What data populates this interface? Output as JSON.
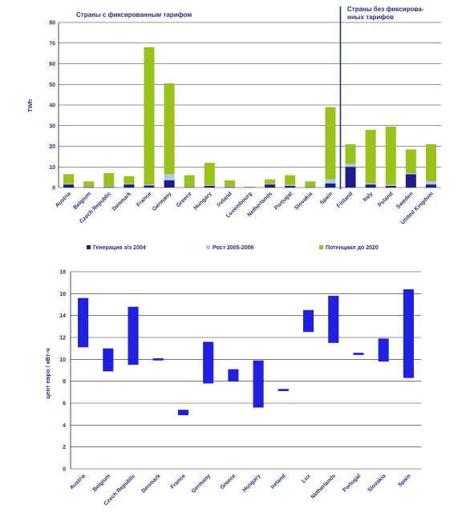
{
  "chart_data": [
    {
      "type": "bar",
      "stacked": true,
      "group_titles": [
        "Страны с фиксированным тарифом",
        "Страны без фиксирова-",
        "нных тарифов"
      ],
      "ylabel": "TWh",
      "ylim": [
        0,
        80
      ],
      "yticks": [
        0,
        10,
        20,
        30,
        40,
        50,
        60,
        70,
        80
      ],
      "grid": true,
      "legend": "bottom",
      "categories": [
        "Austria",
        "Belgium",
        "Czech Republic",
        "Denmark",
        "France",
        "Germany",
        "Greece",
        "Hungary",
        "Ireland",
        "Luxembourg",
        "Netherlands",
        "Portugal",
        "Slovakia",
        "Spain",
        "Finland",
        "Italy",
        "Poland",
        "Sweden",
        "United Kingdom"
      ],
      "series": [
        {
          "name": "Генерация э/э 2004",
          "color": "#1c1c8c",
          "values": [
            1.5,
            0.3,
            0.3,
            1.5,
            1.0,
            3.5,
            0.2,
            0.8,
            0.3,
            0.1,
            1.5,
            0.8,
            0.2,
            2.0,
            10.0,
            1.5,
            0.8,
            6.5,
            1.5
          ]
        },
        {
          "name": "Рост 2005-2006",
          "color": "#a8ccec",
          "values": [
            0.3,
            0.2,
            0.3,
            0.3,
            0.5,
            3.0,
            0.2,
            0.3,
            0.2,
            0.1,
            0.3,
            0.5,
            0.2,
            2.0,
            1.5,
            0.5,
            0.5,
            0.5,
            1.5
          ]
        },
        {
          "name": "Потенциал до 2020",
          "color": "#99c31a",
          "values": [
            4.7,
            2.5,
            6.4,
            3.7,
            66.5,
            44.0,
            5.6,
            10.9,
            3.0,
            0.3,
            2.2,
            4.7,
            2.6,
            35.0,
            9.5,
            26.0,
            28.2,
            11.5,
            18.0
          ]
        }
      ]
    },
    {
      "type": "floating_bar",
      "ylabel": "цент евро / кВт-ч",
      "ylim": [
        0,
        18
      ],
      "yticks": [
        0,
        2,
        4,
        6,
        8,
        10,
        12,
        14,
        16,
        18
      ],
      "grid": true,
      "bar_color": "#2020e0",
      "categories": [
        "Austria",
        "Belgium",
        "Czech Republic",
        "Denmark",
        "France",
        "Germany",
        "Greece",
        "Hungary",
        "Ireland",
        "Lux",
        "Netherlands",
        "Portugal",
        "Slovakia",
        "Spain"
      ],
      "ranges": [
        [
          11.1,
          15.6
        ],
        [
          8.9,
          11.0
        ],
        [
          9.5,
          14.8
        ],
        [
          9.9,
          10.1
        ],
        [
          4.9,
          5.4
        ],
        [
          7.8,
          11.6
        ],
        [
          8.0,
          9.1
        ],
        [
          5.6,
          9.9
        ],
        [
          7.1,
          7.3
        ],
        [
          12.5,
          14.5
        ],
        [
          11.5,
          15.8
        ],
        [
          10.4,
          10.6
        ],
        [
          9.8,
          11.9
        ],
        [
          8.3,
          16.4
        ]
      ]
    }
  ]
}
